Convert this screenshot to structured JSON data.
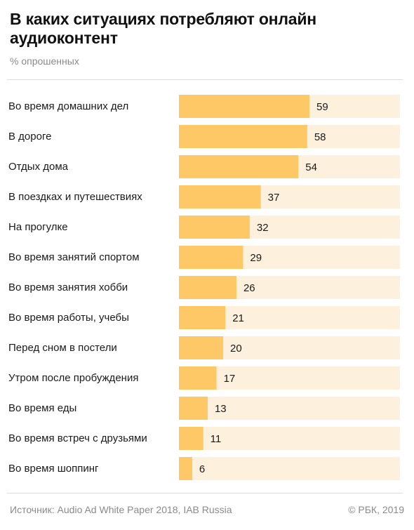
{
  "header": {
    "title": "В каких ситуациях потребляют онлайн аудиоконтент",
    "subtitle": "% опрошенных"
  },
  "footer": {
    "source": "Источник: Audio Ad White Paper 2018, IAB Russia",
    "copyright": "© РБК, 2019"
  },
  "colors": {
    "bar": "#fdc865",
    "track": "#fdf1de",
    "text": "#1a1a1a",
    "muted": "#8a8a8a"
  },
  "chart_data": {
    "type": "bar",
    "orientation": "horizontal",
    "title": "В каких ситуациях потребляют онлайн аудиоконтент",
    "subtitle": "% опрошенных",
    "categories": [
      "Во время домашних дел",
      "В дороге",
      "Отдых дома",
      "В поездках и путешествиях",
      "На прогулке",
      "Во время занятий спортом",
      "Во время занятия хобби",
      "Во время работы, учебы",
      "Перед сном в постели",
      "Утром после пробуждения",
      "Во время еды",
      "Во время встреч с друзьями",
      "Во время шоппинг"
    ],
    "values": [
      59,
      58,
      54,
      37,
      32,
      29,
      26,
      21,
      20,
      17,
      13,
      11,
      6
    ],
    "xlim": [
      0,
      100
    ],
    "grid": false,
    "legend": "none"
  }
}
